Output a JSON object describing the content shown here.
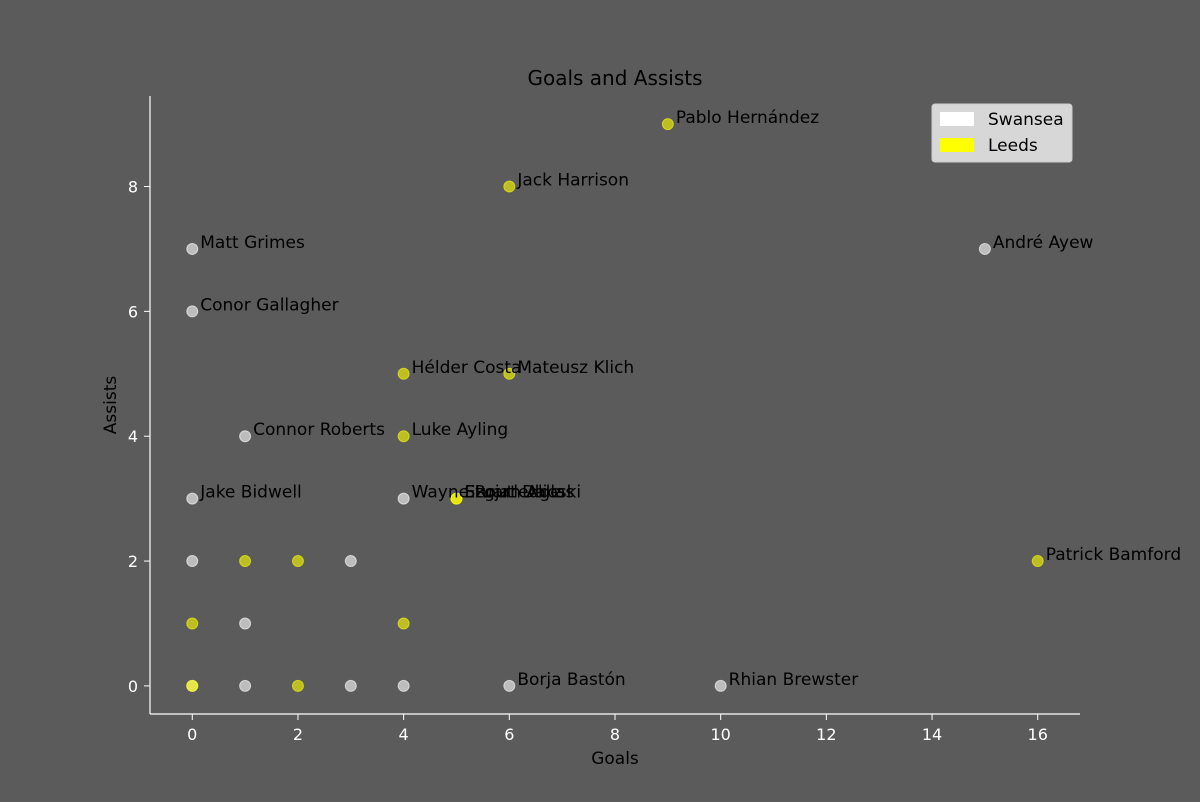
{
  "chart_data": {
    "type": "scatter",
    "title": "Goals and Assists",
    "xlabel": "Goals",
    "ylabel": "Assists",
    "xlim": [
      -0.8,
      16.8
    ],
    "ylim": [
      -0.45,
      9.45
    ],
    "xticks": [
      0,
      2,
      4,
      6,
      8,
      10,
      12,
      14,
      16
    ],
    "yticks": [
      0,
      2,
      4,
      6,
      8
    ],
    "grid": false,
    "legend_position": "top-right",
    "series": [
      {
        "name": "Swansea",
        "color": "#ffffff",
        "points": [
          {
            "x": 15,
            "y": 7,
            "label": "André Ayew"
          },
          {
            "x": 0,
            "y": 7,
            "label": "Matt Grimes"
          },
          {
            "x": 0,
            "y": 6,
            "label": "Conor Gallagher"
          },
          {
            "x": 1,
            "y": 4,
            "label": "Connor Roberts"
          },
          {
            "x": 0,
            "y": 3,
            "label": "Jake Bidwell"
          },
          {
            "x": 4,
            "y": 3,
            "label": "Wayne Routledge"
          },
          {
            "x": 6,
            "y": 0,
            "label": "Borja Bastón"
          },
          {
            "x": 10,
            "y": 0,
            "label": "Rhian Brewster"
          },
          {
            "x": 0,
            "y": 2,
            "label": ""
          },
          {
            "x": 3,
            "y": 2,
            "label": ""
          },
          {
            "x": 1,
            "y": 1,
            "label": ""
          },
          {
            "x": 0,
            "y": 0,
            "label": ""
          },
          {
            "x": 1,
            "y": 0,
            "label": ""
          },
          {
            "x": 3,
            "y": 0,
            "label": ""
          },
          {
            "x": 4,
            "y": 0,
            "label": ""
          }
        ]
      },
      {
        "name": "Leeds",
        "color": "#ffff00",
        "points": [
          {
            "x": 9,
            "y": 9,
            "label": "Pablo Hernández"
          },
          {
            "x": 6,
            "y": 8,
            "label": "Jack Harrison"
          },
          {
            "x": 4,
            "y": 5,
            "label": "Hélder Costa"
          },
          {
            "x": 6,
            "y": 5,
            "label": "Mateusz Klich"
          },
          {
            "x": 4,
            "y": 4,
            "label": "Luke Ayling"
          },
          {
            "x": 5,
            "y": 3,
            "label": "Ezgjan Alioski"
          },
          {
            "x": 5,
            "y": 3,
            "label": "Stuart Dallas"
          },
          {
            "x": 16,
            "y": 2,
            "label": "Patrick Bamford"
          },
          {
            "x": 1,
            "y": 2,
            "label": ""
          },
          {
            "x": 2,
            "y": 2,
            "label": ""
          },
          {
            "x": 0,
            "y": 1,
            "label": ""
          },
          {
            "x": 4,
            "y": 1,
            "label": ""
          },
          {
            "x": 0,
            "y": 0,
            "label": ""
          },
          {
            "x": 2,
            "y": 0,
            "label": ""
          }
        ]
      }
    ]
  }
}
